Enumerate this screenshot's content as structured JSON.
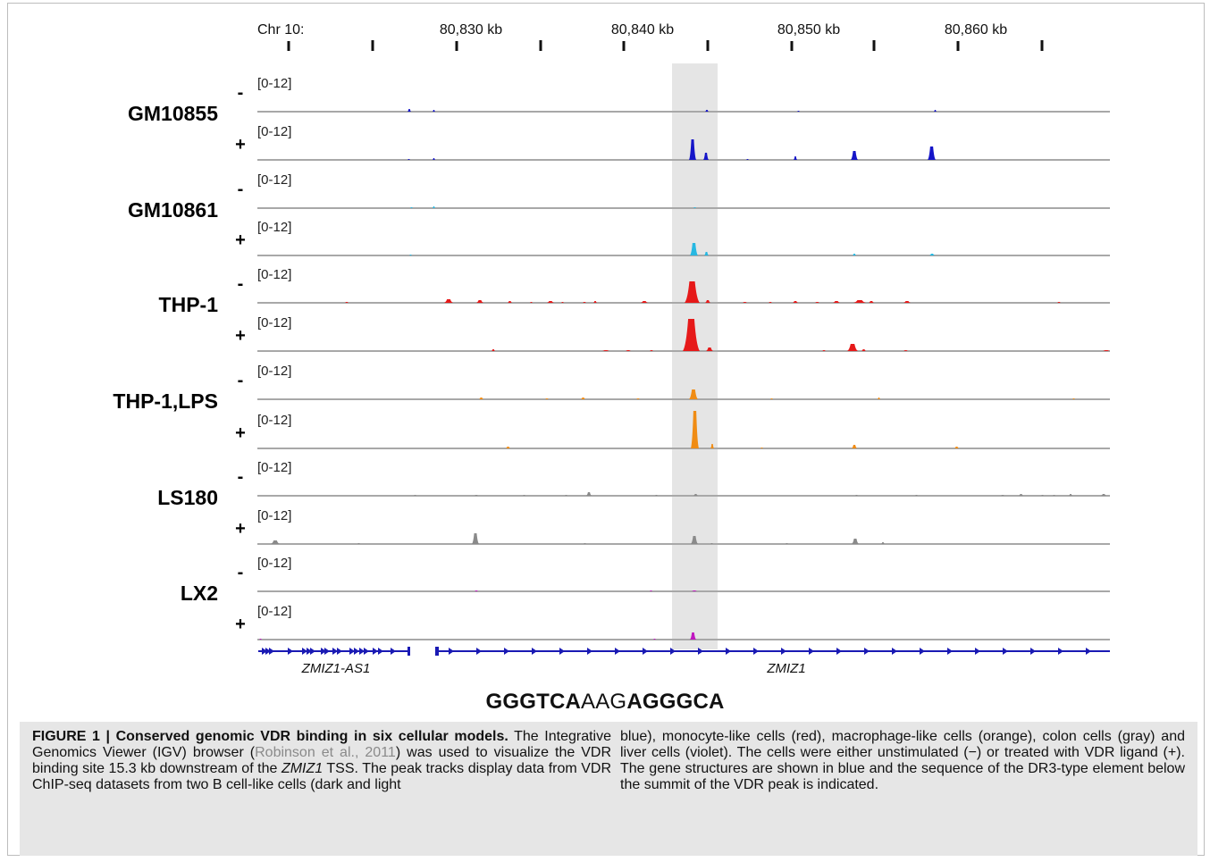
{
  "figure": {
    "axis": {
      "chrom_label": "Chr 10:",
      "tick_labels": [
        "80,830 kb",
        "80,840 kb",
        "80,850 kb",
        "80,860 kb"
      ]
    },
    "range_label": "[0-12]",
    "tracks": [
      {
        "cell": "GM10855",
        "color": "#1515c8",
        "minus": "-",
        "plus": "+"
      },
      {
        "cell": "GM10861",
        "color": "#27b8e2",
        "minus": "-",
        "plus": "+"
      },
      {
        "cell": "THP-1",
        "color": "#e61919",
        "minus": "-",
        "plus": "+"
      },
      {
        "cell": "THP-1,LPS",
        "color": "#f08c14",
        "minus": "-",
        "plus": "+"
      },
      {
        "cell": "LS180",
        "color": "#8a8a8a",
        "minus": "-",
        "plus": "+"
      },
      {
        "cell": "LX2",
        "color": "#c018c0",
        "minus": "-",
        "plus": "+"
      }
    ],
    "genes": [
      "ZMIZ1-AS1",
      "ZMIZ1"
    ],
    "gene_color": "#1a1ab4",
    "sequence": {
      "part1": "GGGTCA",
      "part2": "AAG",
      "part3": "AGGGCA"
    }
  },
  "caption": {
    "title": "FIGURE 1 | Conserved genomic VDR binding in six cellular models.",
    "t1": " The Integrative Genomics Viewer (IGV) browser (",
    "ref": "Robinson et al., 2011",
    "t2": ") was used to visualize the VDR binding site 15.3 kb downstream of the ",
    "gene": "ZMIZ1",
    "t3": " TSS. The peak tracks display data from VDR ChIP-seq datasets from two B cell-like cells (dark and light",
    "right": "blue), monocyte-like cells (red), macrophage-like cells (orange), colon cells (gray) and liver cells (violet). The cells were either unstimulated (−) or treated with VDR ligand (+). The gene structures are shown in blue and the sequence of the DR3-type element below the summit of the VDR peak is indicated."
  }
}
